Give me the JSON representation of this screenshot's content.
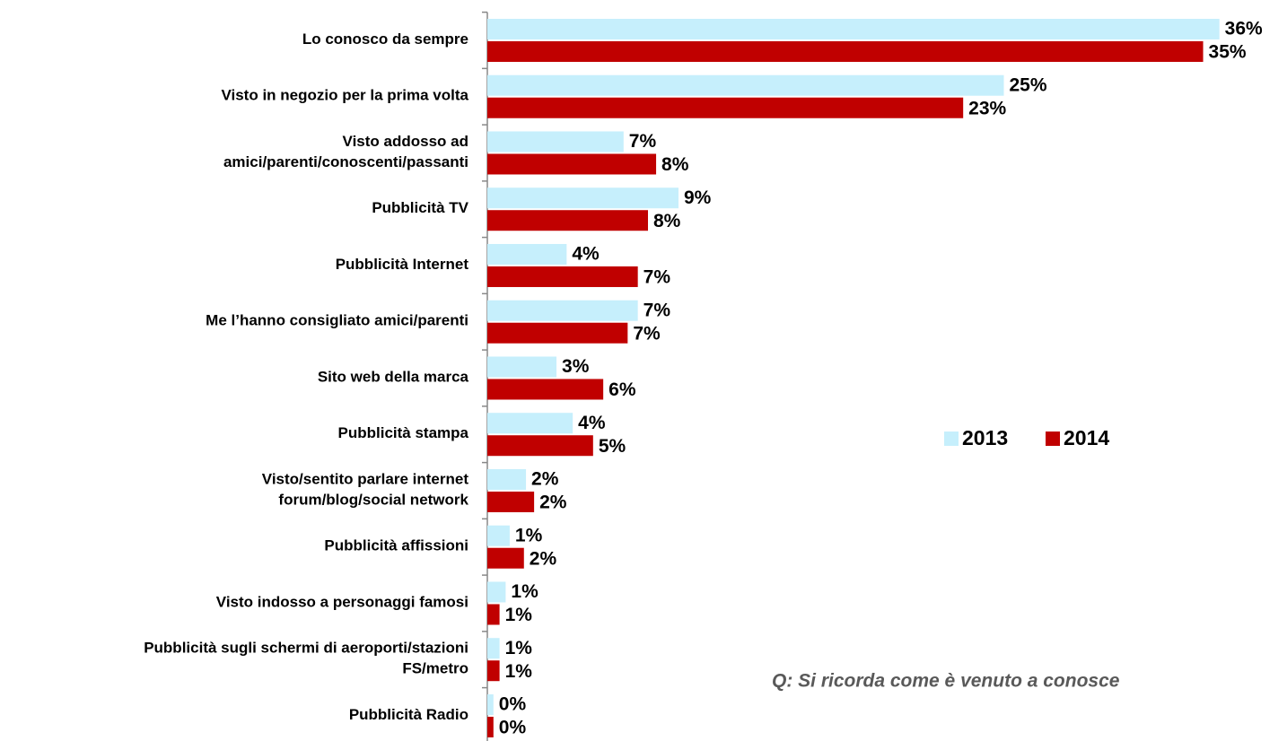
{
  "chart_data": {
    "type": "hbar",
    "categories": [
      [
        "Lo conosco da sempre"
      ],
      [
        "Visto in negozio per la prima volta"
      ],
      [
        "Visto addosso ad",
        "amici/parenti/conoscenti/passanti"
      ],
      [
        "Pubblicità TV"
      ],
      [
        "Pubblicità Internet"
      ],
      [
        "Me l’hanno consigliato amici/parenti"
      ],
      [
        "Sito web della marca"
      ],
      [
        "Pubblicità stampa"
      ],
      [
        "Visto/sentito parlare internet",
        "forum/blog/social network"
      ],
      [
        "Pubblicità affissioni"
      ],
      [
        "Visto indosso a personaggi famosi"
      ],
      [
        "Pubblicità sugli schermi di aeroporti/stazioni",
        "FS/metro"
      ],
      [
        "Pubblicità Radio"
      ]
    ],
    "series": [
      {
        "name": "2013",
        "color": "#c6effc",
        "values": [
          36.0,
          25.4,
          6.7,
          9.4,
          3.9,
          7.4,
          3.4,
          4.2,
          1.9,
          1.1,
          0.9,
          0.6,
          0.3
        ],
        "value_labels": [
          "36%",
          "25%",
          "7%",
          "9%",
          "4%",
          "7%",
          "3%",
          "4%",
          "2%",
          "1%",
          "1%",
          "1%",
          "0%"
        ]
      },
      {
        "name": "2014",
        "color": "#c00000",
        "values": [
          35.2,
          23.4,
          8.3,
          7.9,
          7.4,
          6.9,
          5.7,
          5.2,
          2.3,
          1.8,
          0.6,
          0.6,
          0.3
        ],
        "value_labels": [
          "35%",
          "23%",
          "8%",
          "8%",
          "7%",
          "7%",
          "6%",
          "5%",
          "2%",
          "2%",
          "1%",
          "1%",
          "0%"
        ]
      }
    ],
    "xlim": [
      0,
      36.5
    ],
    "note": "Q: Si ricorda come è venuto a conosce"
  }
}
